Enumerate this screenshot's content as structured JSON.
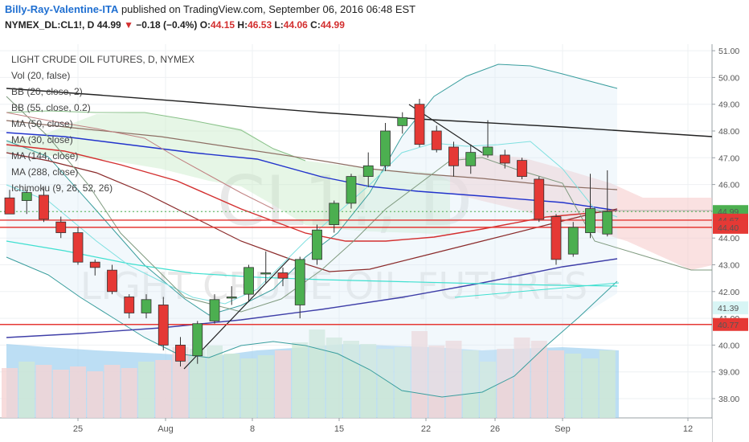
{
  "header": {
    "author": "Billy-Ray-Valentine-ITA",
    "published": " published on TradingView.com, September 06, 2016 06:48 EST",
    "symbol": "NYMEX_DL:CL1!, D",
    "last": "44.99",
    "change": "−0.18 (−0.4%)",
    "o_label": "O:",
    "o_val": "44.15",
    "h_label": "H:",
    "h_val": "46.53",
    "l_label": "L:",
    "l_val": "44.06",
    "c_label": "C:",
    "c_val": "44.99"
  },
  "watermark": {
    "symbol": "CL1!, D",
    "name": "LIGHT CRUDE OIL FUTURES"
  },
  "indicators": [
    "LIGHT CRUDE OIL FUTURES, D, NYMEX",
    "Vol (20, false)",
    "BB (20, close, 2)",
    "BB (55, close, 0.2)",
    "MA (50, close)",
    "MA (30, close)",
    "MA (144, close)",
    "MA (288, close)",
    "Ichimoku (9, 26, 52, 26)"
  ],
  "chart_data": {
    "type": "candlestick",
    "y_range": [
      37.55,
      51.3
    ],
    "y_ticks": [
      38,
      39,
      40,
      41,
      42,
      43,
      44,
      45,
      46,
      47,
      48,
      49,
      50,
      51
    ],
    "x_ticks": [
      "25",
      "Aug",
      "8",
      "15",
      "22",
      "26",
      "Sep",
      "12"
    ],
    "price_labels": [
      {
        "value": 44.99,
        "text": "44.99",
        "color": "#4caf50"
      },
      {
        "value": 44.67,
        "text": "44.67",
        "color": "#e53935"
      },
      {
        "value": 44.4,
        "text": "44.40",
        "color": "#e53935"
      },
      {
        "value": 41.39,
        "text": "41.39",
        "color": "#d8f5f5"
      },
      {
        "value": 40.77,
        "text": "40.77",
        "color": "#e53935"
      }
    ],
    "horizontal_lines": [
      44.67,
      44.4,
      40.77
    ],
    "candles": [
      {
        "d": "Jul 18",
        "o": 45.5,
        "h": 45.8,
        "l": 44.9,
        "c": 44.9
      },
      {
        "d": "Jul 19",
        "o": 45.4,
        "h": 45.8,
        "l": 44.9,
        "c": 45.7
      },
      {
        "d": "Jul 20",
        "o": 45.6,
        "h": 45.9,
        "l": 44.6,
        "c": 44.7
      },
      {
        "d": "Jul 21",
        "o": 44.6,
        "h": 44.8,
        "l": 44.0,
        "c": 44.2
      },
      {
        "d": "Jul 22",
        "o": 44.2,
        "h": 44.4,
        "l": 43.0,
        "c": 43.1
      },
      {
        "d": "Jul 25",
        "o": 43.1,
        "h": 43.2,
        "l": 42.6,
        "c": 42.9
      },
      {
        "d": "Jul 26",
        "o": 42.8,
        "h": 43.0,
        "l": 41.9,
        "c": 42.0
      },
      {
        "d": "Jul 27",
        "o": 41.8,
        "h": 41.9,
        "l": 41.0,
        "c": 41.2
      },
      {
        "d": "Jul 28",
        "o": 41.2,
        "h": 41.9,
        "l": 41.0,
        "c": 41.7
      },
      {
        "d": "Jul 29",
        "o": 41.5,
        "h": 41.8,
        "l": 39.8,
        "c": 40.0
      },
      {
        "d": "Aug 01",
        "o": 40.0,
        "h": 40.3,
        "l": 39.2,
        "c": 39.4
      },
      {
        "d": "Aug 02",
        "o": 39.6,
        "h": 40.9,
        "l": 39.3,
        "c": 40.8
      },
      {
        "d": "Aug 03",
        "o": 40.9,
        "h": 41.9,
        "l": 40.8,
        "c": 41.7
      },
      {
        "d": "Aug 04",
        "o": 41.8,
        "h": 42.2,
        "l": 41.5,
        "c": 41.8
      },
      {
        "d": "Aug 05",
        "o": 41.9,
        "h": 43.0,
        "l": 41.6,
        "c": 42.9
      },
      {
        "d": "Aug 08",
        "o": 42.7,
        "h": 43.5,
        "l": 42.3,
        "c": 42.7
      },
      {
        "d": "Aug 09",
        "o": 42.7,
        "h": 42.9,
        "l": 42.2,
        "c": 42.5
      },
      {
        "d": "Aug 10",
        "o": 41.5,
        "h": 43.3,
        "l": 41.0,
        "c": 43.2
      },
      {
        "d": "Aug 11",
        "o": 43.2,
        "h": 44.5,
        "l": 43.0,
        "c": 44.3
      },
      {
        "d": "Aug 12",
        "o": 44.5,
        "h": 45.4,
        "l": 44.2,
        "c": 45.3
      },
      {
        "d": "Aug 15",
        "o": 45.3,
        "h": 46.4,
        "l": 45.1,
        "c": 46.3
      },
      {
        "d": "Aug 16",
        "o": 46.3,
        "h": 47.2,
        "l": 45.9,
        "c": 46.7
      },
      {
        "d": "Aug 17",
        "o": 46.7,
        "h": 48.3,
        "l": 46.5,
        "c": 48.0
      },
      {
        "d": "Aug 18",
        "o": 48.2,
        "h": 48.7,
        "l": 47.9,
        "c": 48.5
      },
      {
        "d": "Aug 19",
        "o": 49.0,
        "h": 49.2,
        "l": 47.4,
        "c": 47.5
      },
      {
        "d": "Aug 22",
        "o": 48.0,
        "h": 48.2,
        "l": 47.2,
        "c": 47.3
      },
      {
        "d": "Aug 23",
        "o": 47.4,
        "h": 47.6,
        "l": 46.3,
        "c": 46.7
      },
      {
        "d": "Aug 24",
        "o": 46.7,
        "h": 47.5,
        "l": 46.4,
        "c": 47.2
      },
      {
        "d": "Aug 25",
        "o": 47.1,
        "h": 48.4,
        "l": 47.0,
        "c": 47.4
      },
      {
        "d": "Aug 26",
        "o": 47.1,
        "h": 47.3,
        "l": 46.6,
        "c": 46.8
      },
      {
        "d": "Aug 29",
        "o": 46.9,
        "h": 47.0,
        "l": 46.2,
        "c": 46.3
      },
      {
        "d": "Aug 30",
        "o": 46.2,
        "h": 46.3,
        "l": 44.6,
        "c": 44.7
      },
      {
        "d": "Aug 31",
        "o": 44.8,
        "h": 44.9,
        "l": 43.0,
        "c": 43.2
      },
      {
        "d": "Sep 01",
        "o": 43.4,
        "h": 44.6,
        "l": 43.3,
        "c": 44.4
      },
      {
        "d": "Sep 02",
        "o": 44.2,
        "h": 46.4,
        "l": 44.0,
        "c": 45.1
      },
      {
        "d": "Sep 06",
        "o": 44.15,
        "h": 46.53,
        "l": 44.06,
        "c": 44.99
      }
    ]
  }
}
